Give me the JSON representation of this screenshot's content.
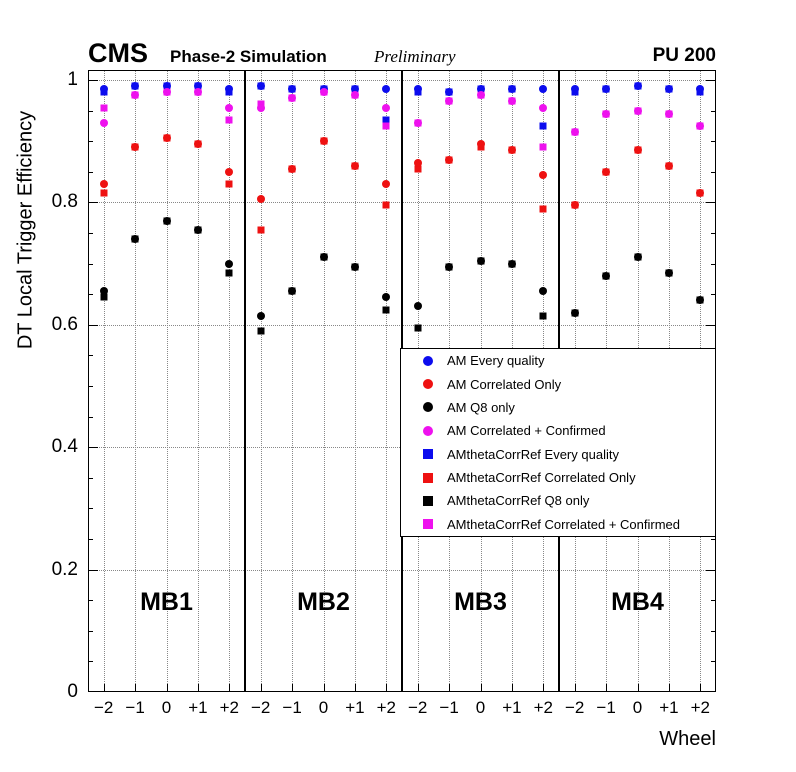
{
  "header": {
    "experiment": "CMS",
    "subtitle": "Phase-2 Simulation",
    "preliminary": "Preliminary",
    "pileup": "PU 200"
  },
  "axes": {
    "y_label": "DT Local Trigger Efficiency",
    "x_label": "Wheel",
    "y_tick_labels": [
      "0",
      "0.2",
      "0.4",
      "0.6",
      "0.8",
      "1"
    ],
    "y_tick_values": [
      0,
      0.2,
      0.4,
      0.6,
      0.8,
      1
    ],
    "x_tick_labels": [
      "−2",
      "−1",
      "0",
      "+1",
      "+2"
    ]
  },
  "chart_data": {
    "type": "scatter",
    "title": "CMS Phase-2 Simulation Preliminary, PU 200",
    "xlabel": "Wheel",
    "ylabel": "DT Local Trigger Efficiency",
    "ylim": [
      0,
      1.016
    ],
    "grid": true,
    "legend_position": "middle-right",
    "panels": [
      "MB1",
      "MB2",
      "MB3",
      "MB4"
    ],
    "wheels": [
      -2,
      -1,
      0,
      1,
      2
    ],
    "series": [
      {
        "name": "AM Every quality",
        "marker": "circle",
        "color": "#0c0cee",
        "values": [
          [
            0.985,
            0.99,
            0.99,
            0.99,
            0.985
          ],
          [
            0.99,
            0.985,
            0.985,
            0.985,
            0.985
          ],
          [
            0.985,
            0.98,
            0.985,
            0.985,
            0.985
          ],
          [
            0.985,
            0.985,
            0.99,
            0.985,
            0.985
          ]
        ]
      },
      {
        "name": "AM Correlated Only",
        "marker": "circle",
        "color": "#ee1111",
        "values": [
          [
            0.83,
            0.89,
            0.905,
            0.895,
            0.85
          ],
          [
            0.805,
            0.855,
            0.9,
            0.86,
            0.83
          ],
          [
            0.865,
            0.87,
            0.895,
            0.885,
            0.845
          ],
          [
            0.795,
            0.85,
            0.885,
            0.86,
            0.815
          ]
        ]
      },
      {
        "name": "AM Q8 only",
        "marker": "circle",
        "color": "#000000",
        "values": [
          [
            0.655,
            0.74,
            0.77,
            0.755,
            0.7
          ],
          [
            0.615,
            0.655,
            0.71,
            0.695,
            0.645
          ],
          [
            0.63,
            0.695,
            0.705,
            0.7,
            0.655
          ],
          [
            0.62,
            0.68,
            0.71,
            0.685,
            0.64
          ]
        ]
      },
      {
        "name": "AM Correlated + Confirmed",
        "marker": "circle",
        "color": "#ee11ee",
        "values": [
          [
            0.93,
            0.975,
            0.98,
            0.98,
            0.955
          ],
          [
            0.955,
            0.97,
            0.98,
            0.975,
            0.955
          ],
          [
            0.93,
            0.965,
            0.975,
            0.965,
            0.955
          ],
          [
            0.915,
            0.945,
            0.95,
            0.945,
            0.925
          ]
        ]
      },
      {
        "name": "AMthetaCorrRef Every quality",
        "marker": "square",
        "color": "#0c0cee",
        "values": [
          [
            0.98,
            0.99,
            0.99,
            0.99,
            0.98
          ],
          [
            0.99,
            0.985,
            0.985,
            0.985,
            0.935
          ],
          [
            0.98,
            0.98,
            0.985,
            0.985,
            0.925
          ],
          [
            0.98,
            0.985,
            0.99,
            0.985,
            0.98
          ]
        ]
      },
      {
        "name": "AMthetaCorrRef Correlated Only",
        "marker": "square",
        "color": "#ee1111",
        "values": [
          [
            0.815,
            0.89,
            0.905,
            0.895,
            0.83
          ],
          [
            0.755,
            0.855,
            0.9,
            0.86,
            0.795
          ],
          [
            0.855,
            0.87,
            0.89,
            0.885,
            0.79
          ],
          [
            0.795,
            0.85,
            0.885,
            0.86,
            0.815
          ]
        ]
      },
      {
        "name": "AMthetaCorrRef Q8 only",
        "marker": "square",
        "color": "#000000",
        "values": [
          [
            0.645,
            0.74,
            0.77,
            0.755,
            0.685
          ],
          [
            0.59,
            0.655,
            0.71,
            0.695,
            0.625
          ],
          [
            0.595,
            0.695,
            0.705,
            0.7,
            0.615
          ],
          [
            0.62,
            0.68,
            0.71,
            0.685,
            0.64
          ]
        ]
      },
      {
        "name": "AMthetaCorrRef Correlated + Confirmed",
        "marker": "square",
        "color": "#ee11ee",
        "values": [
          [
            0.955,
            0.975,
            0.98,
            0.98,
            0.935
          ],
          [
            0.96,
            0.97,
            0.98,
            0.975,
            0.925
          ],
          [
            0.93,
            0.965,
            0.975,
            0.965,
            0.89
          ],
          [
            0.915,
            0.945,
            0.95,
            0.945,
            0.925
          ]
        ]
      }
    ]
  }
}
